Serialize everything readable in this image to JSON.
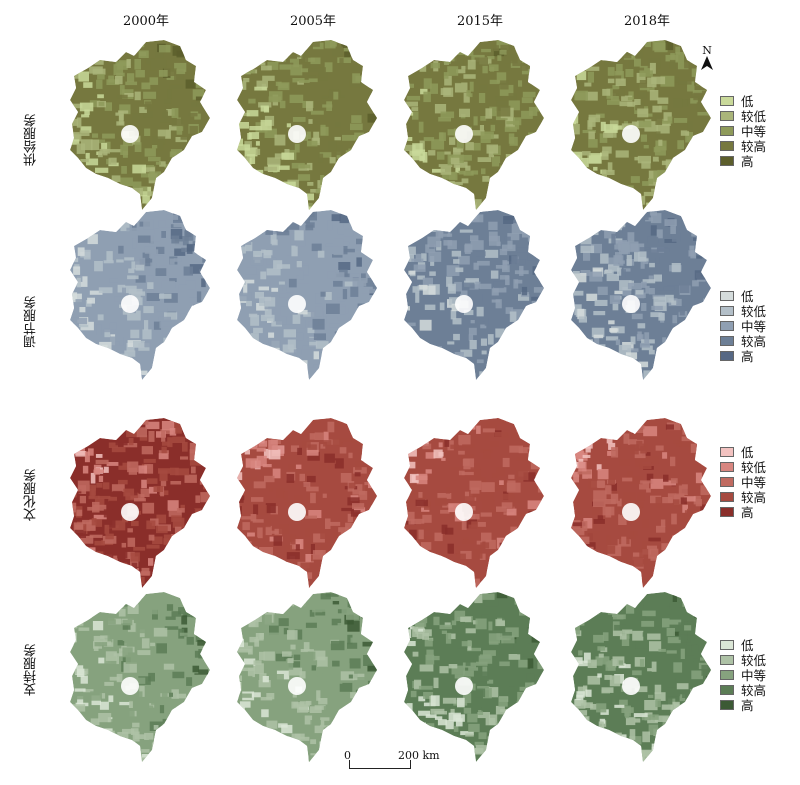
{
  "columns": [
    "2000年",
    "2005年",
    "2015年",
    "2018年"
  ],
  "rows": [
    {
      "label": "供给服务",
      "legend": [
        "低",
        "较低",
        "中等",
        "较高",
        "高"
      ],
      "colors": [
        "#c9d99a",
        "#aab57a",
        "#8e9a5a",
        "#76783f",
        "#5c5e2c"
      ],
      "dominant_class": [
        3,
        3,
        3,
        3
      ]
    },
    {
      "label": "调节服务",
      "legend": [
        "低",
        "较低",
        "中等",
        "较高",
        "高"
      ],
      "colors": [
        "#d5dcdc",
        "#b3bfc8",
        "#8f9fb2",
        "#6d7f96",
        "#566884"
      ],
      "dominant_class": [
        2,
        2,
        3,
        3
      ]
    },
    {
      "label": "文化服务",
      "legend": [
        "低",
        "较低",
        "中等",
        "较高",
        "高"
      ],
      "colors": [
        "#f2c2c0",
        "#d88680",
        "#c06a60",
        "#a64a40",
        "#8a2e2a"
      ],
      "dominant_class": [
        4,
        3,
        3,
        3
      ]
    },
    {
      "label": "支持服务",
      "legend": [
        "低",
        "较低",
        "中等",
        "较高",
        "高"
      ],
      "colors": [
        "#dbe6d6",
        "#aec2a6",
        "#86a27e",
        "#5c7d56",
        "#3c5a35"
      ],
      "dominant_class": [
        2,
        2,
        3,
        3
      ]
    }
  ],
  "north_arrow": {
    "label": "N"
  },
  "scale_bar": {
    "start": "0",
    "end": "200 km"
  }
}
